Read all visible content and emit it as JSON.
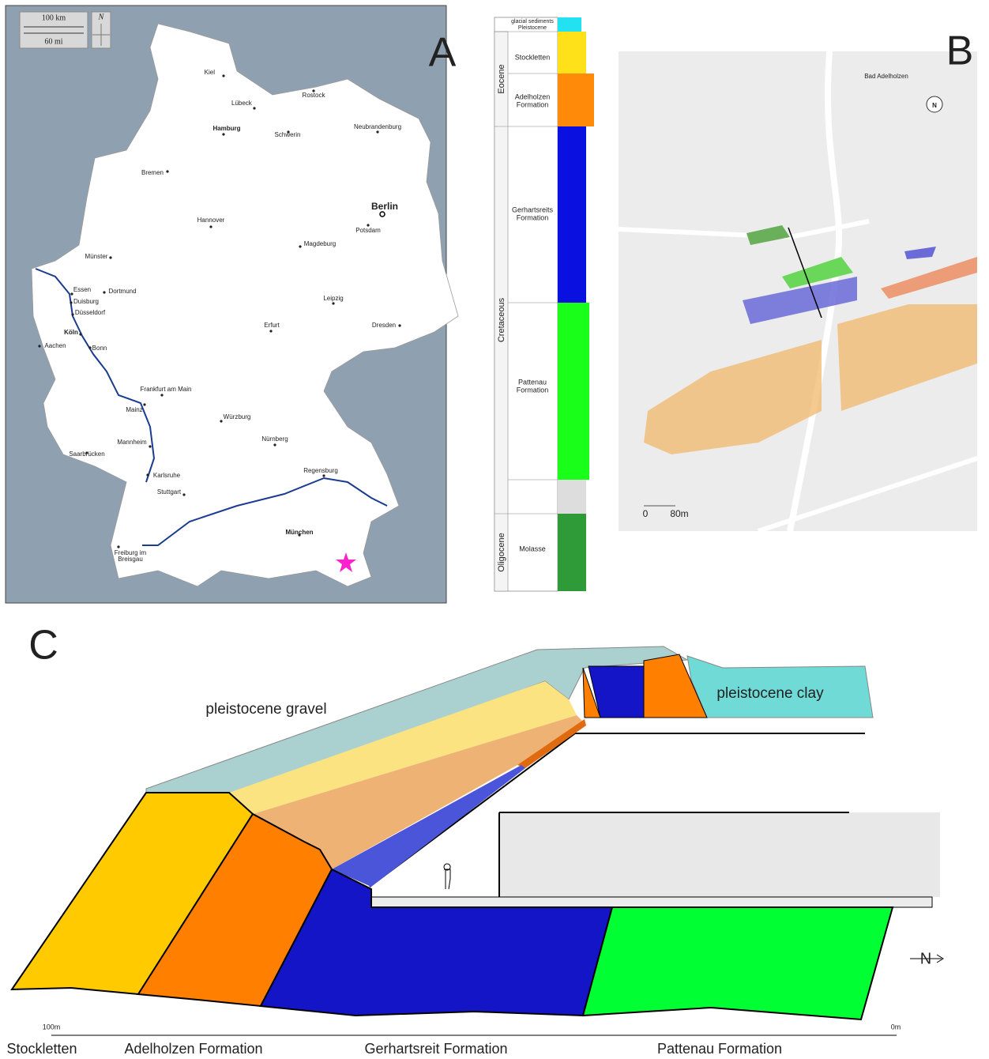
{
  "panel_a": {
    "label": "A",
    "scale_km": "100 km",
    "scale_mi": "60 mi",
    "north": "N",
    "cities": [
      [
        "Kiel"
      ],
      [
        "Lübeck"
      ],
      [
        "Rostock"
      ],
      [
        "Hamburg"
      ],
      [
        "Schwerin"
      ],
      [
        "Neubrandenburg"
      ],
      [
        "Bremen"
      ],
      [
        "Berlin"
      ],
      [
        "Hannover"
      ],
      [
        "Potsdam"
      ],
      [
        "Magdeburg"
      ],
      [
        "Münster"
      ],
      [
        "Essen"
      ],
      [
        "Dortmund"
      ],
      [
        "Duisburg"
      ],
      [
        "Düsseldorf"
      ],
      [
        "Köln"
      ],
      [
        "Bonn"
      ],
      [
        "Aachen"
      ],
      [
        "Leipzig"
      ],
      [
        "Dresden"
      ],
      [
        "Erfurt"
      ],
      [
        "Frankfurt am Main"
      ],
      [
        "Mainz"
      ],
      [
        "Würzburg"
      ],
      [
        "Mannheim"
      ],
      [
        "Nürnberg"
      ],
      [
        "Saarbrücken"
      ],
      [
        "Regensburg"
      ],
      [
        "Karlsruhe"
      ],
      [
        "Stuttgart"
      ],
      [
        "München"
      ],
      [
        "Freiburg im",
        "Breisgau"
      ]
    ]
  },
  "column": {
    "periods": [
      "Eocene",
      "Cretaceous",
      "Oligocene"
    ],
    "units": [
      [
        "glacial sediments",
        "Pleistocene"
      ],
      [
        "Stockletten"
      ],
      [
        "Adelholzen",
        "Formation"
      ],
      [
        "Gerhartsreits",
        "Formation"
      ],
      [
        "Pattenau",
        "Formation"
      ],
      [
        "Molasse"
      ]
    ]
  },
  "panel_b": {
    "label": "B",
    "place": "Bad Adelholzen",
    "north": "N",
    "scale": [
      "0",
      "80m"
    ]
  },
  "panel_c": {
    "label": "C",
    "gravel": "pleistocene gravel",
    "clay": "pleistocene clay",
    "scale": [
      "100m",
      "0m"
    ],
    "north": "N",
    "formations": [
      "Stockletten",
      "Adelholzen Formation",
      "Gerhartsreit Formation",
      "Pattenau Formation"
    ]
  }
}
